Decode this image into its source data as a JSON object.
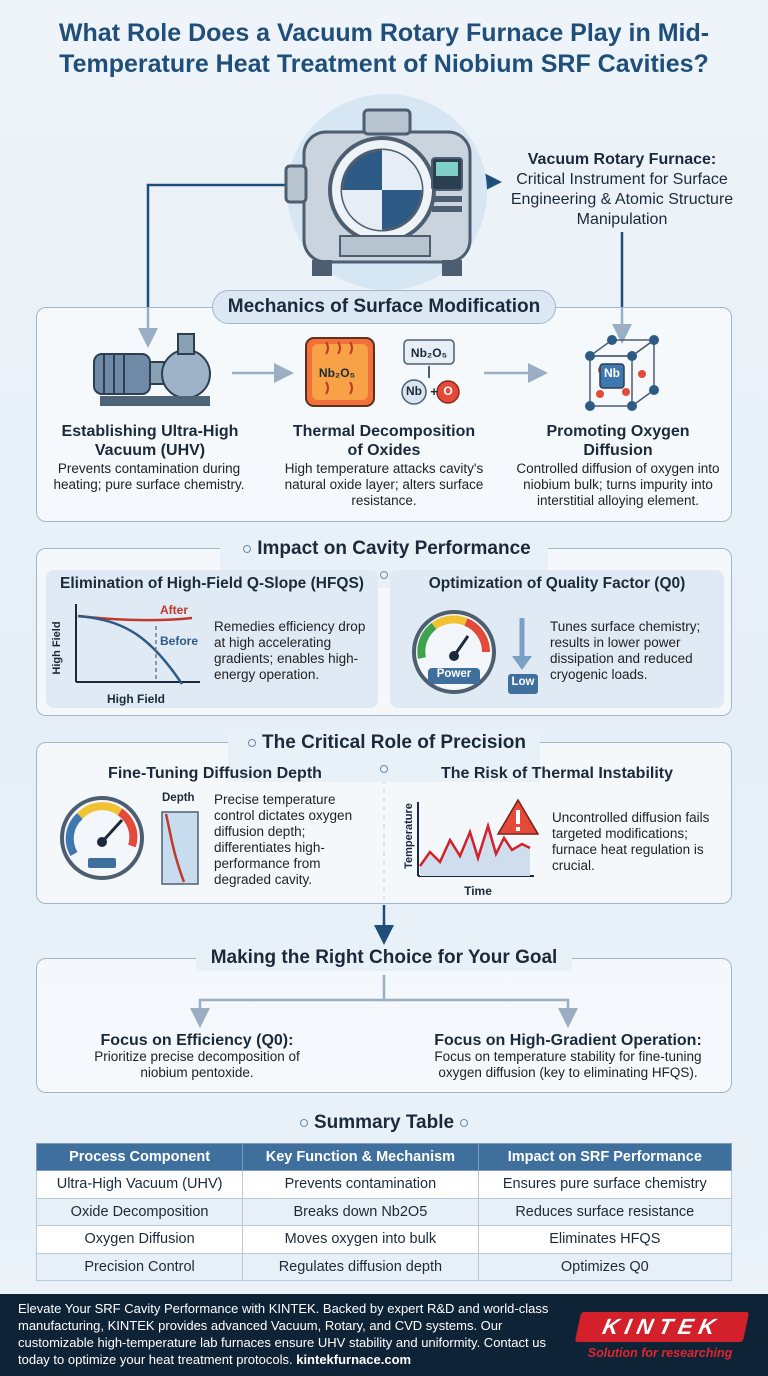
{
  "title": "What Role Does a Vacuum Rotary Furnace Play in Mid-Temperature Heat Treatment of Niobium SRF Cavities?",
  "hero": {
    "caption_bold": "Vacuum Rotary Furnace:",
    "caption_rest": "Critical Instrument for Surface Engineering & Atomic Structure Manipulation"
  },
  "mechanics": {
    "heading": "Mechanics of Surface Modification",
    "steps": [
      {
        "title": "Establishing Ultra-High Vacuum (UHV)",
        "desc": "Prevents contamination during heating; pure surface chemistry."
      },
      {
        "title": "Thermal Decomposition of Oxides",
        "desc": "High temperature attacks cavity's natural oxide layer; alters surface resistance."
      },
      {
        "title": "Promoting Oxygen Diffusion",
        "desc": "Controlled diffusion of oxygen into niobium bulk; turns impurity into interstitial alloying element."
      }
    ],
    "labels": {
      "nb2o5": "Nb₂O₅",
      "nb": "Nb",
      "plus": "+",
      "o": "O",
      "cube_nb": "Nb"
    }
  },
  "impact": {
    "heading": "Impact on Cavity Performance",
    "left": {
      "title": "Elimination of High-Field Q-Slope (HFQS)",
      "desc": "Remedies efficiency drop at high accelerating gradients; enables high-energy operation.",
      "after": "After",
      "before": "Before",
      "ylabel": "High Field",
      "xlabel": "High Field"
    },
    "right": {
      "title": "Optimization of Quality Factor (Q0)",
      "desc": "Tunes surface chemistry; results in lower power dissipation and reduced cryogenic loads.",
      "gauge_label": "Power",
      "low_label": "Low"
    }
  },
  "precision": {
    "heading": "The Critical Role of Precision",
    "left": {
      "title": "Fine-Tuning Diffusion Depth",
      "desc": "Precise temperature control dictates oxygen diffusion depth; differentiates high-performance from degraded cavity.",
      "depth_label": "Depth"
    },
    "right": {
      "title": "The Risk of Thermal Instability",
      "desc": "Uncontrolled diffusion fails targeted modifications; furnace heat regulation is crucial.",
      "ylabel": "Temperature",
      "xlabel": "Time"
    }
  },
  "choice": {
    "heading": "Making the Right Choice for Your Goal",
    "left": {
      "title": "Focus on Efficiency (Q0):",
      "desc": "Prioritize precise decomposition of niobium pentoxide."
    },
    "right": {
      "title": "Focus on High-Gradient Operation:",
      "desc": "Focus on temperature stability for fine-tuning oxygen diffusion (key to eliminating HFQS)."
    }
  },
  "summary": {
    "heading": "Summary Table",
    "headers": [
      "Process Component",
      "Key Function & Mechanism",
      "Impact on SRF Performance"
    ],
    "rows": [
      [
        "Ultra-High Vacuum (UHV)",
        "Prevents contamination",
        "Ensures pure surface chemistry"
      ],
      [
        "Oxide Decomposition",
        "Breaks down Nb2O5",
        "Reduces surface resistance"
      ],
      [
        "Oxygen Diffusion",
        "Moves oxygen into bulk",
        "Eliminates HFQS"
      ],
      [
        "Precision Control",
        "Regulates diffusion depth",
        "Optimizes Q0"
      ]
    ]
  },
  "footer": {
    "text": "Elevate Your SRF Cavity Performance with KINTEK. Backed by expert R&D and world-class manufacturing, KINTEK provides advanced Vacuum, Rotary, and CVD systems. Our customizable high-temperature lab furnaces ensure UHV stability and uniformity. Contact us today to optimize your heat treatment protocols.",
    "link": "kintekfurnace.com",
    "logo": "KINTEK",
    "tagline": "Solution for researching"
  },
  "colors": {
    "primary": "#1f4e7a",
    "accent": "#d4202a",
    "table_header": "#3f6f9c"
  }
}
